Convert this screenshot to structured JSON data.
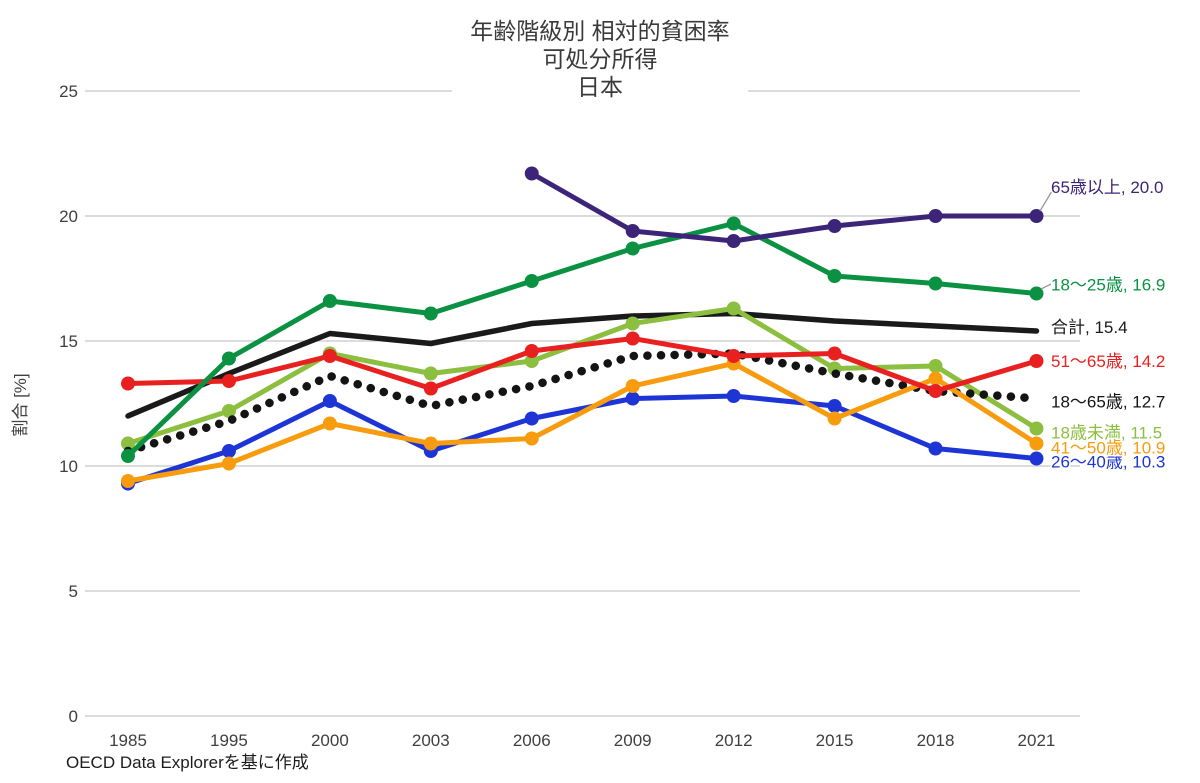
{
  "chart_data": {
    "type": "line",
    "title_lines": [
      "年齢階級別 相対的貧困率",
      "可処分所得",
      "日本"
    ],
    "ylabel": "割合 [%]",
    "source": "OECD Data Explorerを基に作成",
    "x": [
      1985,
      1995,
      2000,
      2003,
      2006,
      2009,
      2012,
      2015,
      2018,
      2021
    ],
    "ylim": [
      0,
      25
    ],
    "yticks": [
      0,
      5,
      10,
      15,
      20,
      25
    ],
    "grid": true,
    "legend_position": "right-end-labels",
    "series": [
      {
        "key": "total",
        "name": "合計",
        "end_label": "合計, 15.4",
        "color": "#1a1a1a",
        "style": "solid",
        "markers": false,
        "values": [
          12.0,
          13.7,
          15.3,
          14.9,
          15.7,
          16.0,
          16.1,
          15.8,
          15.6,
          15.4
        ]
      },
      {
        "key": "age-0-17",
        "name": "18歳未満",
        "end_label": "18歳未満, 11.5",
        "color": "#8CBE3F",
        "style": "solid",
        "markers": true,
        "values": [
          10.9,
          12.2,
          14.5,
          13.7,
          14.2,
          15.7,
          16.3,
          13.9,
          14.0,
          11.5
        ]
      },
      {
        "key": "age-18-65",
        "name": "18〜65歳",
        "end_label": "18〜65歳, 12.7",
        "color": "#141414",
        "style": "dotted",
        "markers": false,
        "values": [
          10.6,
          11.8,
          13.6,
          12.4,
          13.2,
          14.4,
          14.5,
          13.7,
          13.0,
          12.7
        ]
      },
      {
        "key": "age-26-40",
        "name": "26〜40歳",
        "end_label": "26〜40歳, 10.3",
        "color": "#1E35D6",
        "style": "solid",
        "markers": true,
        "values": [
          9.3,
          10.6,
          12.6,
          10.6,
          11.9,
          12.7,
          12.8,
          12.4,
          10.7,
          10.3
        ]
      },
      {
        "key": "age-41-50",
        "name": "41〜50歳",
        "end_label": "41〜50歳, 10.9",
        "color": "#F79C0E",
        "style": "solid",
        "markers": true,
        "values": [
          9.4,
          10.1,
          11.7,
          10.9,
          11.1,
          13.2,
          14.1,
          11.9,
          13.5,
          10.9
        ]
      },
      {
        "key": "age-51-65",
        "name": "51〜65歳",
        "end_label": "51〜65歳, 14.2",
        "color": "#E8201F",
        "style": "solid",
        "markers": true,
        "values": [
          13.3,
          13.4,
          14.4,
          13.1,
          14.6,
          15.1,
          14.4,
          14.5,
          13.0,
          14.2
        ]
      },
      {
        "key": "age-18-25",
        "name": "18〜25歳",
        "end_label": "18〜25歳, 16.9",
        "color": "#0A9142",
        "style": "solid",
        "markers": true,
        "values": [
          10.4,
          14.3,
          16.6,
          16.1,
          17.4,
          18.7,
          19.7,
          17.6,
          17.3,
          16.9
        ]
      },
      {
        "key": "age-65-plus",
        "name": "65歳以上",
        "end_label": "65歳以上, 20.0",
        "color": "#3C2478",
        "style": "solid",
        "markers": true,
        "values": [
          null,
          null,
          null,
          null,
          21.7,
          19.4,
          19.0,
          19.6,
          20.0,
          20.0
        ]
      }
    ]
  }
}
